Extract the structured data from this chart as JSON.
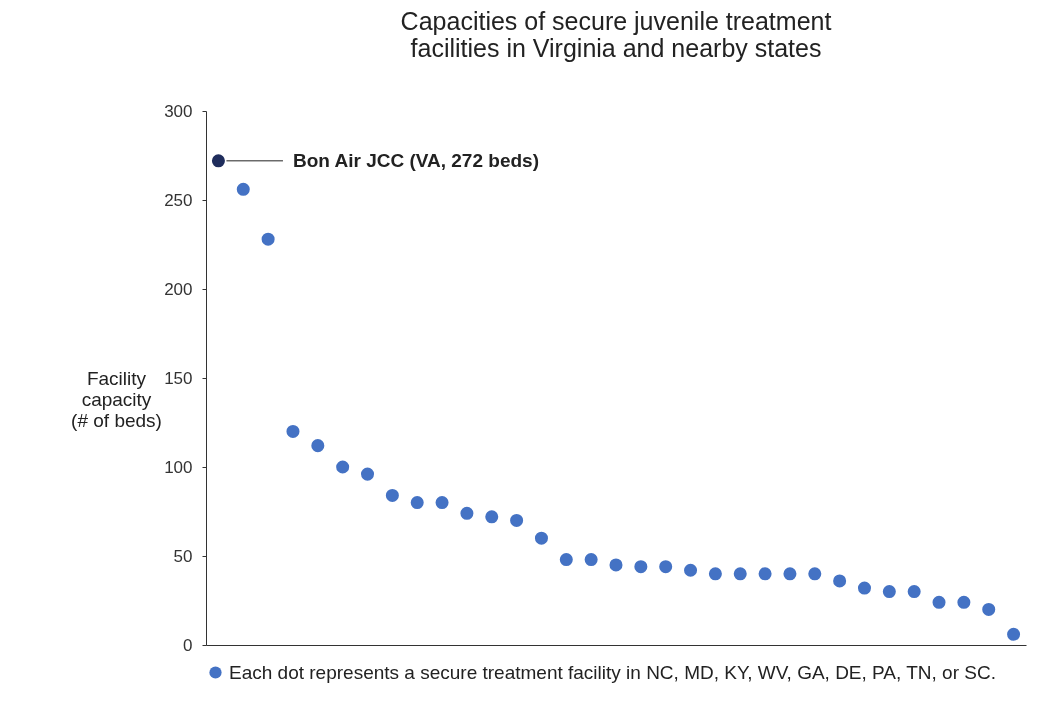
{
  "chart_data": {
    "type": "scatter",
    "title": "Capacities of secure juvenile treatment facilities in Virginia and nearby states",
    "ylabel": "Facility capacity (# of beds)",
    "categories": [
      null,
      null,
      null,
      null,
      null,
      null,
      null,
      null,
      null,
      null,
      null,
      null,
      null,
      null,
      null,
      null,
      null,
      null,
      null,
      null,
      null,
      null,
      null,
      null,
      null,
      null,
      null,
      null,
      null,
      null,
      null,
      null,
      null
    ],
    "series": [
      {
        "name": "Each dot represents a secure treatment facility in NC, MD, KY, WV, GA, DE, PA, TN, or SC.",
        "color": "#4472c4",
        "colors": [
          "#1f2d5c",
          "#4472c4",
          "#4472c4",
          "#4472c4",
          "#4472c4",
          "#4472c4",
          "#4472c4",
          "#4472c4",
          "#4472c4",
          "#4472c4",
          "#4472c4",
          "#4472c4",
          "#4472c4",
          "#4472c4",
          "#4472c4",
          "#4472c4",
          "#4472c4",
          "#4472c4",
          "#4472c4",
          "#4472c4",
          "#4472c4",
          "#4472c4",
          "#4472c4",
          "#4472c4",
          "#4472c4",
          "#4472c4",
          "#4472c4",
          "#4472c4",
          "#4472c4",
          "#4472c4",
          "#4472c4",
          "#4472c4",
          "#4472c4"
        ],
        "values": [
          272,
          256,
          228,
          120,
          112,
          100,
          96,
          84,
          80,
          80,
          74,
          72,
          70,
          60,
          48,
          48,
          45,
          44,
          44,
          42,
          40,
          40,
          40,
          40,
          40,
          36,
          32,
          30,
          30,
          24,
          24,
          20,
          6
        ]
      }
    ],
    "annotations": [
      "Bon Air JCC (VA, 272 beds)"
    ],
    "ylim": [
      0,
      300
    ],
    "yticks": [
      0,
      50,
      100,
      150,
      200,
      250,
      300
    ],
    "grid": false,
    "legend": "bottom",
    "marker": "circle"
  }
}
